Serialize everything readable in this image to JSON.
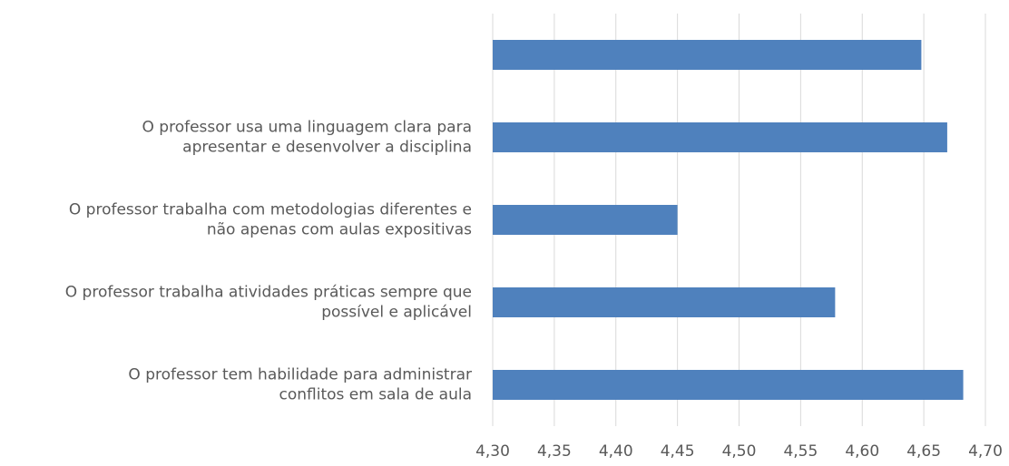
{
  "chart_data": {
    "type": "barh",
    "categories": [
      null,
      "O professor usa uma linguagem clara para\napresentar e desenvolver a disciplina",
      "O professor trabalha com metodologias diferentes e\nnão apenas  com aulas expositivas",
      "O professor trabalha atividades práticas sempre que\npossível e aplicável",
      "O professor tem habilidade para administrar\nconflitos em sala de aula"
    ],
    "values": [
      4.648,
      4.669,
      4.45,
      4.578,
      4.682
    ],
    "color": "#4f81bd",
    "xlim": [
      4.3,
      4.7
    ],
    "xticks": [
      {
        "value": 4.3,
        "label": "4,30"
      },
      {
        "value": 4.35,
        "label": "4,35"
      },
      {
        "value": 4.4,
        "label": "4,40"
      },
      {
        "value": 4.45,
        "label": "4,45"
      },
      {
        "value": 4.5,
        "label": "4,50"
      },
      {
        "value": 4.55,
        "label": "4,55"
      },
      {
        "value": 4.6,
        "label": "4,60"
      },
      {
        "value": 4.65,
        "label": "4,65"
      },
      {
        "value": 4.7,
        "label": "4,70"
      }
    ],
    "grid": true
  }
}
